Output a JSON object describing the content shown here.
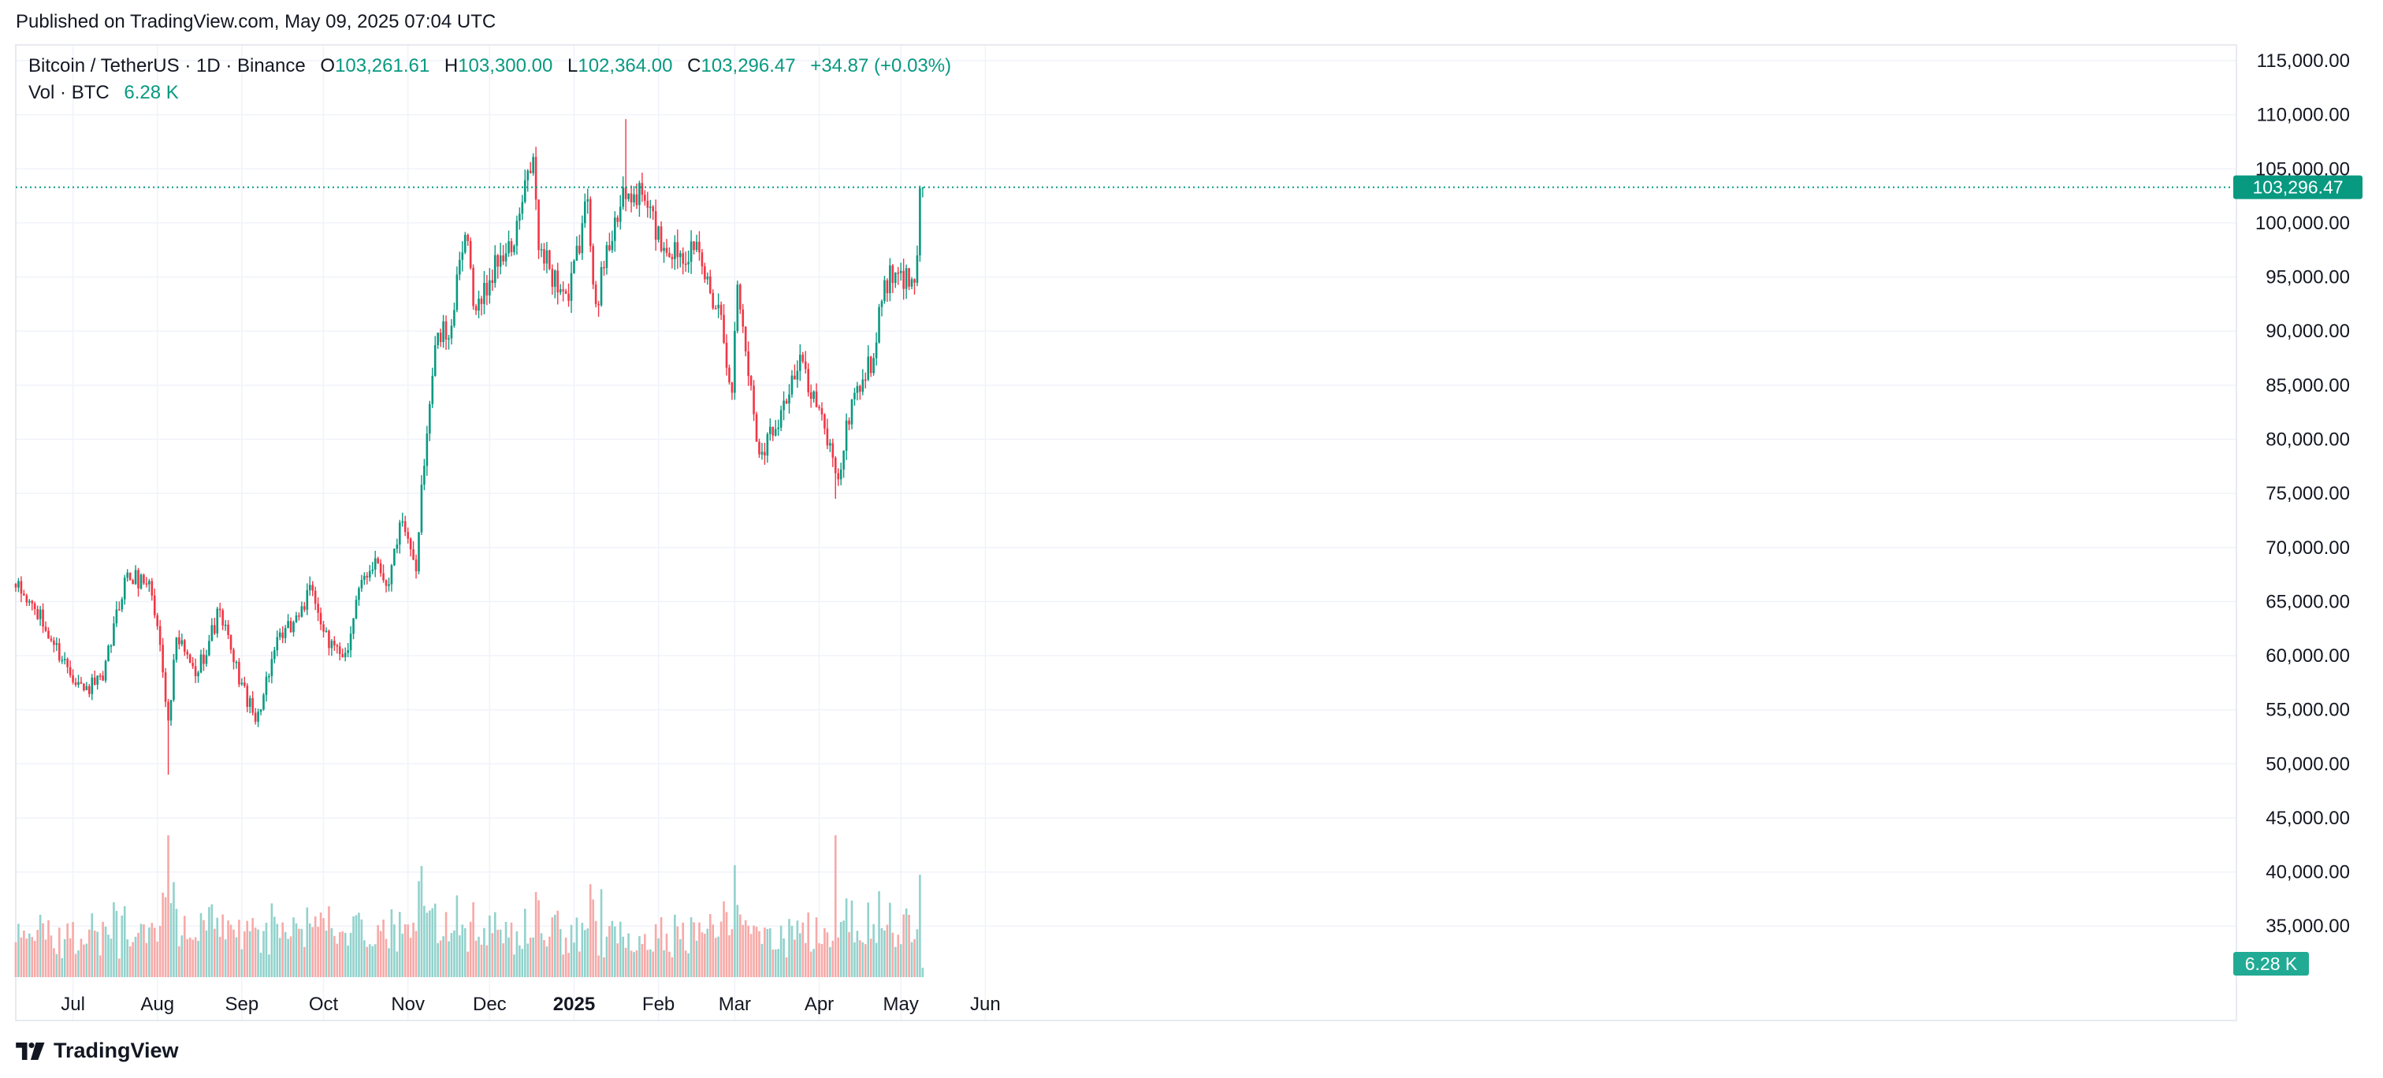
{
  "published": "Published on TradingView.com, May 09, 2025 07:04 UTC",
  "legend": {
    "symbol": "Bitcoin / TetherUS · 1D · Binance",
    "o_label": "O",
    "o_value": "103,261.61",
    "h_label": "H",
    "h_value": "103,300.00",
    "l_label": "L",
    "l_value": "102,364.00",
    "c_label": "C",
    "c_value": "103,296.47",
    "change": "+34.87 (+0.03%)"
  },
  "volume_legend": {
    "label": "Vol · BTC",
    "value": "6.28 K"
  },
  "brand": {
    "name": "TradingView",
    "icon": "tradingview-logo-icon"
  },
  "colors": {
    "up": "#089981",
    "down": "#F23645",
    "up_volume": "#92D2CC",
    "down_volume": "#F7A9A7",
    "grid": "#F0F3FA",
    "last_price_line": "#089981"
  },
  "chart_data": {
    "type": "candlestick",
    "interval": "1D",
    "date_range": [
      "2024-06-10",
      "2025-05-09"
    ],
    "x_tick_labels": [
      "Jul",
      "Aug",
      "Sep",
      "Oct",
      "Nov",
      "Dec",
      "2025",
      "Feb",
      "Mar",
      "Apr",
      "May",
      "Jun"
    ],
    "y_tick_labels": [
      "115,000.00",
      "110,000.00",
      "105,000.00",
      "100,000.00",
      "95,000.00",
      "90,000.00",
      "85,000.00",
      "80,000.00",
      "75,000.00",
      "70,000.00",
      "65,000.00",
      "60,000.00",
      "55,000.00",
      "50,000.00",
      "45,000.00",
      "40,000.00",
      "35,000.00"
    ],
    "ylim": [
      32000,
      117000
    ],
    "grid": true,
    "last_price_label": "103,296.47",
    "volume_label": "6.28 K",
    "last_candle": {
      "date": "2025-05-09",
      "open": 103261.61,
      "high": 103300.0,
      "low": 102364.0,
      "close": 103296.47
    },
    "close_anchors": [
      [
        "2024-06-10",
        66300
      ],
      [
        "2024-06-17",
        64300
      ],
      [
        "2024-06-24",
        61000
      ],
      [
        "2024-07-05",
        56800
      ],
      [
        "2024-07-12",
        57700
      ],
      [
        "2024-07-20",
        67200
      ],
      [
        "2024-07-29",
        66900
      ],
      [
        "2024-08-02",
        61000
      ],
      [
        "2024-08-05",
        54000
      ],
      [
        "2024-08-08",
        61700
      ],
      [
        "2024-08-15",
        58100
      ],
      [
        "2024-08-24",
        64200
      ],
      [
        "2024-08-29",
        59400
      ],
      [
        "2024-09-06",
        53900
      ],
      [
        "2024-09-13",
        60500
      ],
      [
        "2024-09-20",
        63100
      ],
      [
        "2024-09-27",
        66000
      ],
      [
        "2024-10-03",
        60700
      ],
      [
        "2024-10-10",
        60500
      ],
      [
        "2024-10-15",
        67000
      ],
      [
        "2024-10-20",
        69000
      ],
      [
        "2024-10-25",
        66600
      ],
      [
        "2024-10-29",
        72300
      ],
      [
        "2024-11-04",
        67800
      ],
      [
        "2024-11-06",
        75800
      ],
      [
        "2024-11-11",
        88700
      ],
      [
        "2024-11-17",
        90500
      ],
      [
        "2024-11-22",
        98900
      ],
      [
        "2024-11-26",
        91900
      ],
      [
        "2024-12-05",
        97000
      ],
      [
        "2024-12-09",
        97300
      ],
      [
        "2024-12-17",
        106100
      ],
      [
        "2024-12-19",
        97500
      ],
      [
        "2024-12-30",
        92800
      ],
      [
        "2025-01-06",
        102200
      ],
      [
        "2025-01-09",
        92500
      ],
      [
        "2025-01-16",
        100500
      ],
      [
        "2025-01-20",
        102200
      ],
      [
        "2025-01-26",
        102600
      ],
      [
        "2025-02-03",
        97700
      ],
      [
        "2025-02-14",
        97500
      ],
      [
        "2025-02-24",
        91500
      ],
      [
        "2025-02-28",
        84300
      ],
      [
        "2025-03-02",
        94300
      ],
      [
        "2025-03-10",
        78600
      ],
      [
        "2025-03-18",
        82700
      ],
      [
        "2025-03-26",
        87200
      ],
      [
        "2025-04-06",
        78300
      ],
      [
        "2025-04-08",
        76300
      ],
      [
        "2025-04-13",
        83700
      ],
      [
        "2025-04-21",
        87500
      ],
      [
        "2025-04-25",
        94700
      ],
      [
        "2025-05-05",
        94800
      ],
      [
        "2025-05-07",
        97000
      ],
      [
        "2025-05-08",
        103200
      ],
      [
        "2025-05-09",
        103296.47
      ]
    ],
    "notable_extremes": [
      {
        "label": "Aug 2024 low",
        "date": "2024-08-05",
        "low": 49000
      },
      {
        "label": "Jan 2025 high",
        "date": "2025-01-20",
        "high": 109600
      },
      {
        "label": "Apr 2025 low",
        "date": "2025-04-07",
        "low": 74500
      }
    ],
    "volume": {
      "unit": "BTC",
      "last_value": "6.28 K"
    }
  }
}
